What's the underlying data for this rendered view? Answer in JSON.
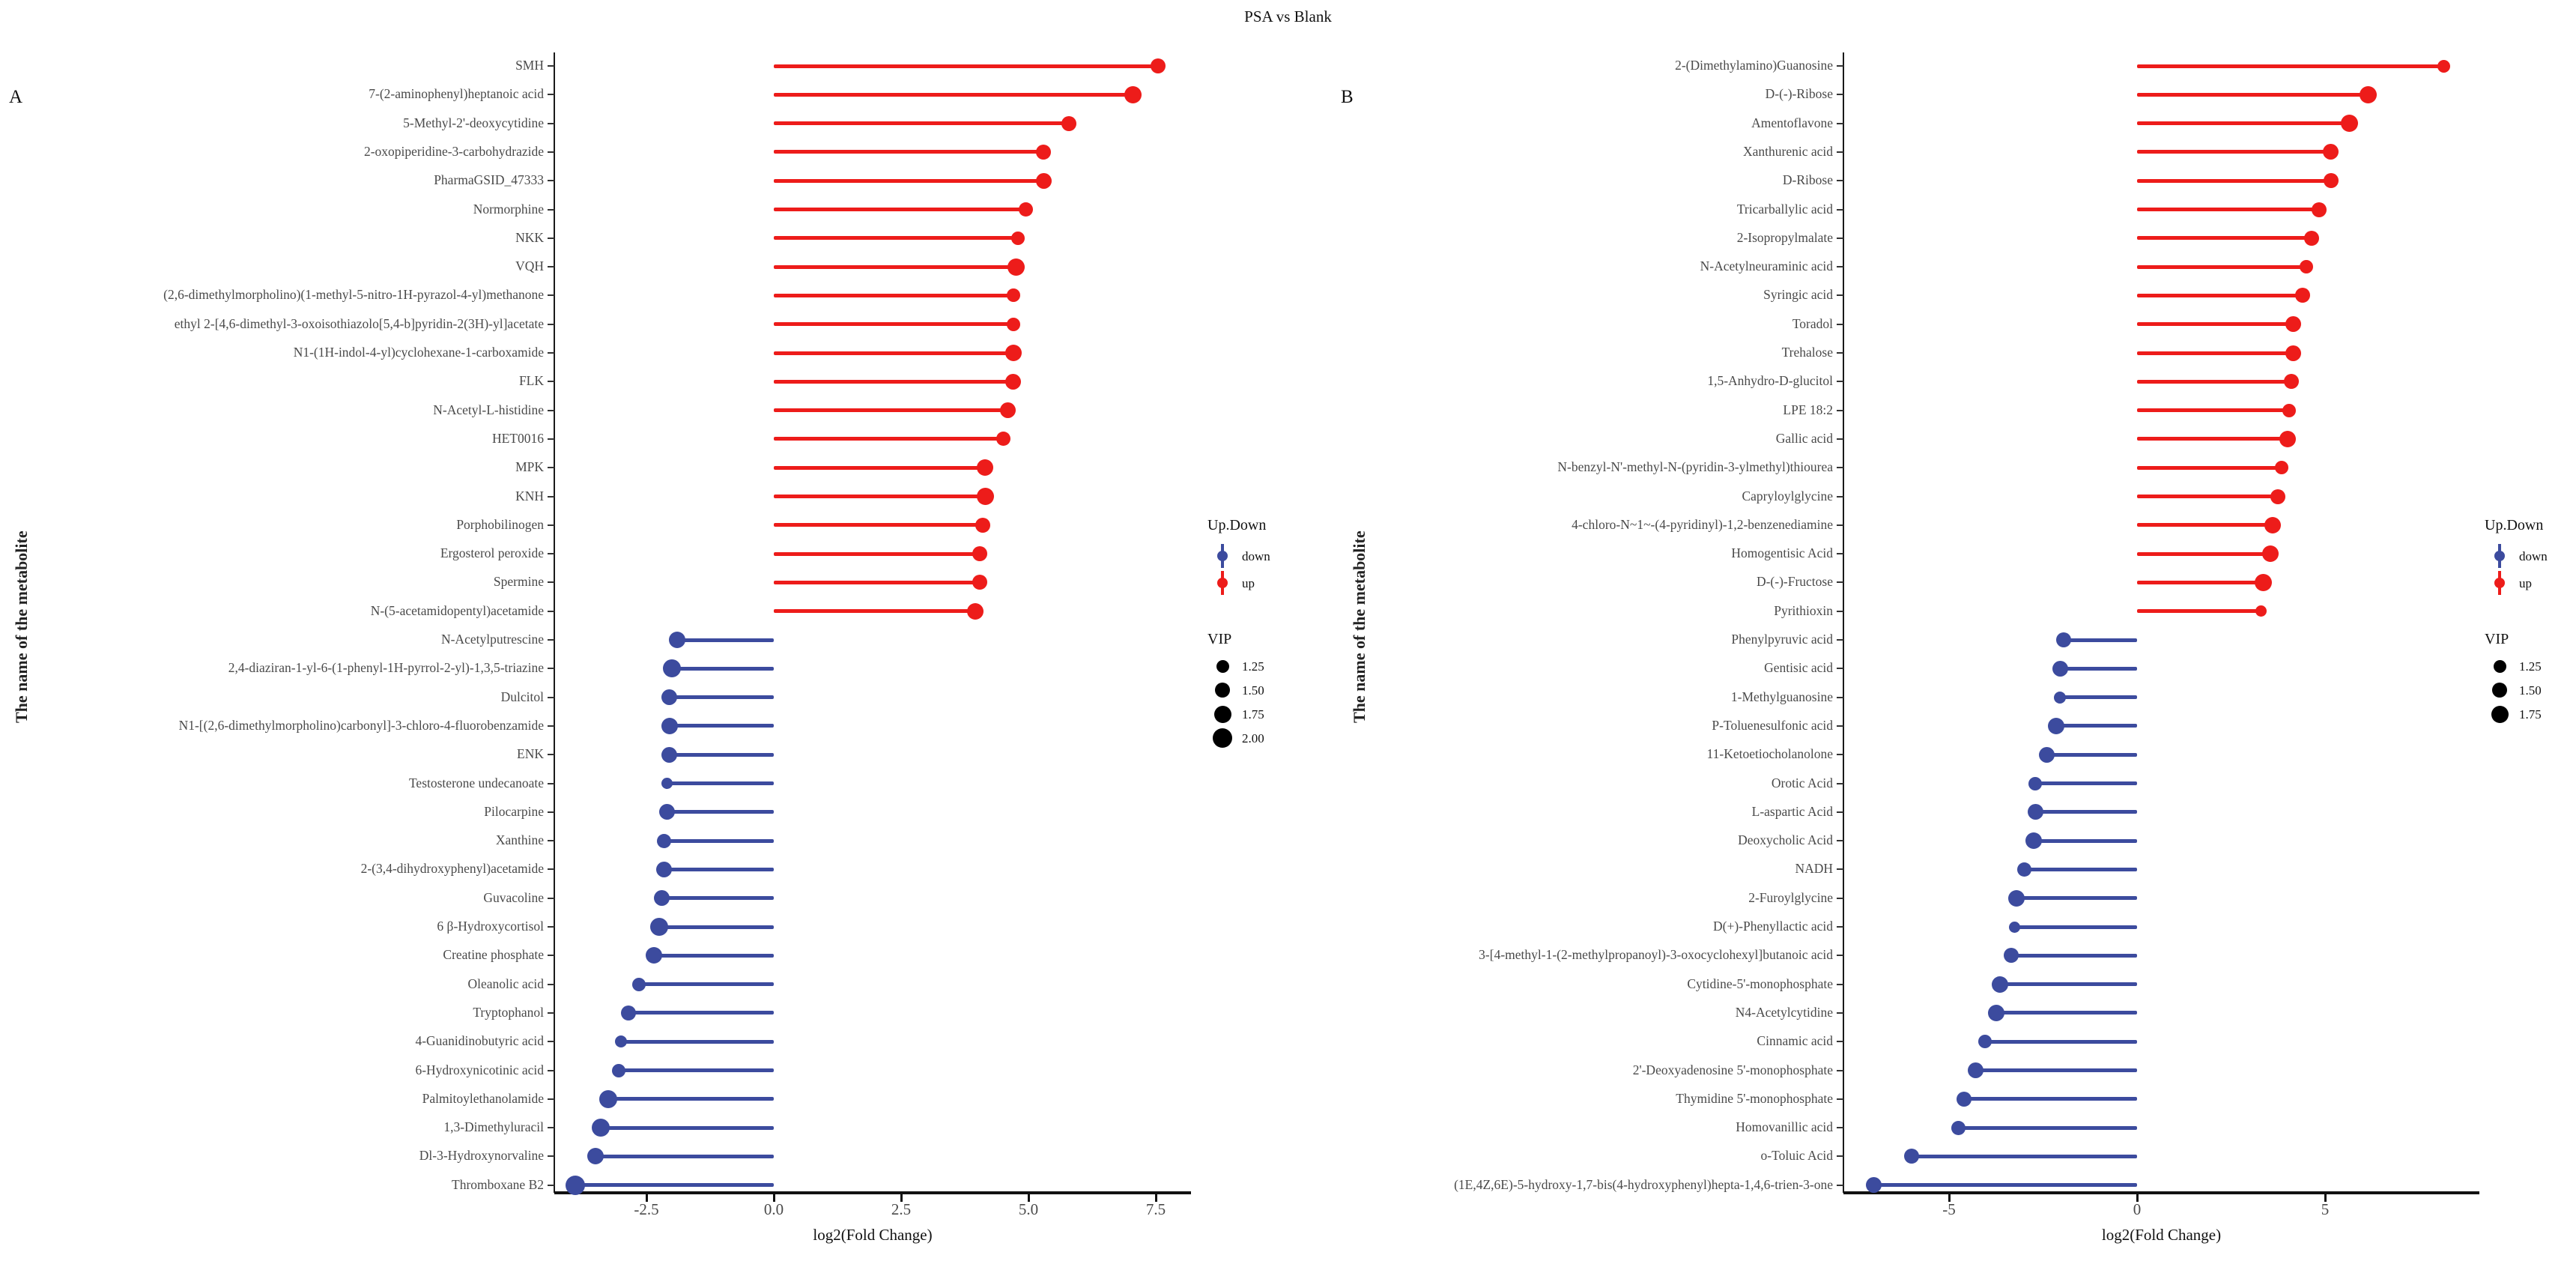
{
  "title": "PSA vs Blank",
  "legend": {
    "updown_title": "Up.Down",
    "down_label": "down",
    "up_label": "up",
    "vip_title": "VIP"
  },
  "colors": {
    "up": "#ed1c1a",
    "down": "#3c4b9e",
    "axis_text": "#4a4a4a",
    "axis_line": "#111111",
    "legend_dot": "#000000"
  },
  "chart_data": [
    {
      "type": "lollipop",
      "panel_label": "A",
      "title": "PSA vs Blank",
      "xlabel": "log2(Fold Change)",
      "ylabel": "The name of the metabolite",
      "xlim": [
        -4.3,
        8.3
      ],
      "xticks": [
        -2.5,
        0,
        2.5,
        5,
        7.5
      ],
      "xtick_labels": [
        "-2.5",
        "0.0",
        "2.5",
        "5.0",
        "7.5"
      ],
      "legend_vip": [
        "1.25",
        "1.50",
        "1.75",
        "2.00"
      ],
      "legend_vip_values": [
        1.25,
        1.5,
        1.75,
        2.0
      ],
      "grid": false,
      "legend_position": "right",
      "points": [
        {
          "name": "SMH",
          "value": 7.55,
          "vip": 1.5,
          "direction": "up"
        },
        {
          "name": "7-(2-aminophenyl)heptanoic acid",
          "value": 7.05,
          "vip": 1.75,
          "direction": "up"
        },
        {
          "name": "5-Methyl-2'-deoxycytidine",
          "value": 5.8,
          "vip": 1.5,
          "direction": "up"
        },
        {
          "name": "2-oxopiperidine-3-carbohydrazide",
          "value": 5.3,
          "vip": 1.5,
          "direction": "up"
        },
        {
          "name": "PharmaGSID_47333",
          "value": 5.3,
          "vip": 1.6,
          "direction": "up"
        },
        {
          "name": "Normorphine",
          "value": 4.95,
          "vip": 1.4,
          "direction": "up"
        },
        {
          "name": "NKK",
          "value": 4.8,
          "vip": 1.3,
          "direction": "up"
        },
        {
          "name": "VQH",
          "value": 4.75,
          "vip": 1.75,
          "direction": "up"
        },
        {
          "name": "(2,6-dimethylmorpholino)(1-methyl-5-nitro-1H-pyrazol-4-yl)methanone",
          "value": 4.7,
          "vip": 1.3,
          "direction": "up"
        },
        {
          "name": "ethyl 2-[4,6-dimethyl-3-oxoisothiazolo[5,4-b]pyridin-2(3H)-yl]acetate",
          "value": 4.7,
          "vip": 1.35,
          "direction": "up"
        },
        {
          "name": "N1-(1H-indol-4-yl)cyclohexane-1-carboxamide",
          "value": 4.7,
          "vip": 1.7,
          "direction": "up"
        },
        {
          "name": "FLK",
          "value": 4.7,
          "vip": 1.6,
          "direction": "up"
        },
        {
          "name": "N-Acetyl-L-histidine",
          "value": 4.6,
          "vip": 1.55,
          "direction": "up"
        },
        {
          "name": "HET0016",
          "value": 4.5,
          "vip": 1.4,
          "direction": "up"
        },
        {
          "name": "MPK",
          "value": 4.15,
          "vip": 1.7,
          "direction": "up"
        },
        {
          "name": "KNH",
          "value": 4.15,
          "vip": 1.75,
          "direction": "up"
        },
        {
          "name": "Porphobilinogen",
          "value": 4.1,
          "vip": 1.5,
          "direction": "up"
        },
        {
          "name": "Ergosterol peroxide",
          "value": 4.05,
          "vip": 1.5,
          "direction": "up"
        },
        {
          "name": "Spermine",
          "value": 4.05,
          "vip": 1.5,
          "direction": "up"
        },
        {
          "name": "N-(5-acetamidopentyl)acetamide",
          "value": 3.95,
          "vip": 1.7,
          "direction": "up"
        },
        {
          "name": "N-Acetylputrescine",
          "value": -1.9,
          "vip": 1.7,
          "direction": "down"
        },
        {
          "name": "2,4-diaziran-1-yl-6-(1-phenyl-1H-pyrrol-2-yl)-1,3,5-triazine",
          "value": -2.0,
          "vip": 1.8,
          "direction": "down"
        },
        {
          "name": "Dulcitol",
          "value": -2.05,
          "vip": 1.6,
          "direction": "down"
        },
        {
          "name": "N1-[(2,6-dimethylmorpholino)carbonyl]-3-chloro-4-fluorobenzamide",
          "value": -2.05,
          "vip": 1.7,
          "direction": "down"
        },
        {
          "name": "ENK",
          "value": -2.05,
          "vip": 1.6,
          "direction": "down"
        },
        {
          "name": "Testosterone undecanoate",
          "value": -2.1,
          "vip": 1.1,
          "direction": "down"
        },
        {
          "name": "Pilocarpine",
          "value": -2.1,
          "vip": 1.6,
          "direction": "down"
        },
        {
          "name": "Xanthine",
          "value": -2.15,
          "vip": 1.4,
          "direction": "down"
        },
        {
          "name": "2-(3,4-dihydroxyphenyl)acetamide",
          "value": -2.15,
          "vip": 1.6,
          "direction": "down"
        },
        {
          "name": "Guvacoline",
          "value": -2.2,
          "vip": 1.6,
          "direction": "down"
        },
        {
          "name": "6 β-Hydroxycortisol",
          "value": -2.25,
          "vip": 1.8,
          "direction": "down"
        },
        {
          "name": "Creatine phosphate",
          "value": -2.35,
          "vip": 1.65,
          "direction": "down"
        },
        {
          "name": "Oleanolic acid",
          "value": -2.65,
          "vip": 1.3,
          "direction": "down"
        },
        {
          "name": "Tryptophanol",
          "value": -2.85,
          "vip": 1.5,
          "direction": "down"
        },
        {
          "name": "4-Guanidinobutyric acid",
          "value": -3.0,
          "vip": 1.15,
          "direction": "down"
        },
        {
          "name": "6-Hydroxynicotinic acid",
          "value": -3.05,
          "vip": 1.3,
          "direction": "down"
        },
        {
          "name": "Palmitoylethanolamide",
          "value": -3.25,
          "vip": 1.8,
          "direction": "down"
        },
        {
          "name": "1,3-Dimethyluracil",
          "value": -3.4,
          "vip": 1.85,
          "direction": "down"
        },
        {
          "name": "Dl-3-Hydroxynorvaline",
          "value": -3.5,
          "vip": 1.7,
          "direction": "down"
        },
        {
          "name": "Thromboxane B2",
          "value": -3.9,
          "vip": 2.0,
          "direction": "down"
        }
      ]
    },
    {
      "type": "lollipop",
      "panel_label": "B",
      "title": "PSA vs Blank",
      "xlabel": "log2(Fold Change)",
      "ylabel": "The name of the metabolite",
      "xlim": [
        -7.8,
        9.1
      ],
      "xticks": [
        -5,
        0,
        5
      ],
      "xtick_labels": [
        "-5",
        "0",
        "5"
      ],
      "legend_vip": [
        "1.25",
        "1.50",
        "1.75"
      ],
      "legend_vip_values": [
        1.25,
        1.5,
        1.75
      ],
      "grid": false,
      "legend_position": "right",
      "points": [
        {
          "name": "2-(Dimethylamino)Guanosine",
          "value": 8.15,
          "vip": 1.25,
          "direction": "up"
        },
        {
          "name": "D-(-)-Ribose",
          "value": 6.15,
          "vip": 1.75,
          "direction": "up"
        },
        {
          "name": "Amentoflavone",
          "value": 5.65,
          "vip": 1.75,
          "direction": "up"
        },
        {
          "name": "Xanthurenic acid",
          "value": 5.15,
          "vip": 1.6,
          "direction": "up"
        },
        {
          "name": "D-Ribose",
          "value": 5.15,
          "vip": 1.5,
          "direction": "up"
        },
        {
          "name": "Tricarballylic acid",
          "value": 4.85,
          "vip": 1.5,
          "direction": "up"
        },
        {
          "name": "2-Isopropylmalate",
          "value": 4.65,
          "vip": 1.5,
          "direction": "up"
        },
        {
          "name": "N-Acetylneuraminic acid",
          "value": 4.5,
          "vip": 1.3,
          "direction": "up"
        },
        {
          "name": "Syringic acid",
          "value": 4.4,
          "vip": 1.5,
          "direction": "up"
        },
        {
          "name": "Toradol",
          "value": 4.15,
          "vip": 1.6,
          "direction": "up"
        },
        {
          "name": "Trehalose",
          "value": 4.15,
          "vip": 1.6,
          "direction": "up"
        },
        {
          "name": "1,5-Anhydro-D-glucitol",
          "value": 4.1,
          "vip": 1.5,
          "direction": "up"
        },
        {
          "name": "LPE 18:2",
          "value": 4.05,
          "vip": 1.35,
          "direction": "up"
        },
        {
          "name": "Gallic acid",
          "value": 4.0,
          "vip": 1.65,
          "direction": "up"
        },
        {
          "name": "N-benzyl-N'-methyl-N-(pyridin-3-ylmethyl)thiourea",
          "value": 3.85,
          "vip": 1.3,
          "direction": "up"
        },
        {
          "name": "Capryloylglycine",
          "value": 3.75,
          "vip": 1.5,
          "direction": "up"
        },
        {
          "name": "4-chloro-N~1~-(4-pyridinyl)-1,2-benzenediamine",
          "value": 3.6,
          "vip": 1.7,
          "direction": "up"
        },
        {
          "name": "Homogentisic Acid",
          "value": 3.55,
          "vip": 1.7,
          "direction": "up"
        },
        {
          "name": "D-(-)-Fructose",
          "value": 3.35,
          "vip": 1.75,
          "direction": "up"
        },
        {
          "name": "Pyrithioxin",
          "value": 3.3,
          "vip": 1.1,
          "direction": "up"
        },
        {
          "name": "Phenylpyruvic acid",
          "value": -1.95,
          "vip": 1.5,
          "direction": "down"
        },
        {
          "name": "Gentisic acid",
          "value": -2.05,
          "vip": 1.55,
          "direction": "down"
        },
        {
          "name": "1-Methylguanosine",
          "value": -2.05,
          "vip": 1.2,
          "direction": "down"
        },
        {
          "name": "P-Toluenesulfonic acid",
          "value": -2.15,
          "vip": 1.65,
          "direction": "down"
        },
        {
          "name": "11-Ketoetiocholanolone",
          "value": -2.4,
          "vip": 1.55,
          "direction": "down"
        },
        {
          "name": "Orotic Acid",
          "value": -2.7,
          "vip": 1.3,
          "direction": "down"
        },
        {
          "name": "L-aspartic Acid",
          "value": -2.7,
          "vip": 1.55,
          "direction": "down"
        },
        {
          "name": "Deoxycholic Acid",
          "value": -2.75,
          "vip": 1.65,
          "direction": "down"
        },
        {
          "name": "NADH",
          "value": -3.0,
          "vip": 1.4,
          "direction": "down"
        },
        {
          "name": "2-Furoylglycine",
          "value": -3.2,
          "vip": 1.65,
          "direction": "down"
        },
        {
          "name": "D(+)-Phenyllactic acid",
          "value": -3.25,
          "vip": 1.1,
          "direction": "down"
        },
        {
          "name": "3-[4-methyl-1-(2-methylpropanoyl)-3-oxocyclohexyl]butanoic acid",
          "value": -3.35,
          "vip": 1.5,
          "direction": "down"
        },
        {
          "name": "Cytidine-5'-monophosphate",
          "value": -3.65,
          "vip": 1.7,
          "direction": "down"
        },
        {
          "name": "N4-Acetylcytidine",
          "value": -3.75,
          "vip": 1.7,
          "direction": "down"
        },
        {
          "name": "Cinnamic acid",
          "value": -4.05,
          "vip": 1.35,
          "direction": "down"
        },
        {
          "name": "2'-Deoxyadenosine 5'-monophosphate",
          "value": -4.3,
          "vip": 1.55,
          "direction": "down"
        },
        {
          "name": "Thymidine 5'-monophosphate",
          "value": -4.6,
          "vip": 1.5,
          "direction": "down"
        },
        {
          "name": "Homovanillic acid",
          "value": -4.75,
          "vip": 1.4,
          "direction": "down"
        },
        {
          "name": "o-Toluic Acid",
          "value": -6.0,
          "vip": 1.5,
          "direction": "down"
        },
        {
          "name": "(1E,4Z,6E)-5-hydroxy-1,7-bis(4-hydroxyphenyl)hepta-1,4,6-trien-3-one",
          "value": -7.0,
          "vip": 1.55,
          "direction": "down"
        }
      ]
    }
  ]
}
